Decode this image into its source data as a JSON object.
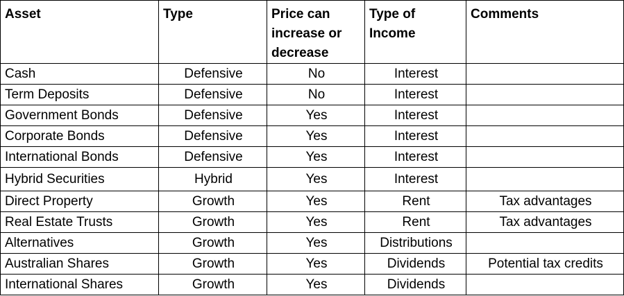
{
  "headers": {
    "asset": "Asset",
    "type": "Type",
    "price": "Price can increase or decrease",
    "income": "Type of Income",
    "comments": "Comments"
  },
  "rows": [
    {
      "asset": "Cash",
      "type": "Defensive",
      "price": "No",
      "income": "Interest",
      "comments": ""
    },
    {
      "asset": "Term Deposits",
      "type": "Defensive",
      "price": "No",
      "income": "Interest",
      "comments": ""
    },
    {
      "asset": "Government Bonds",
      "type": "Defensive",
      "price": "Yes",
      "income": "Interest",
      "comments": ""
    },
    {
      "asset": "Corporate Bonds",
      "type": "Defensive",
      "price": "Yes",
      "income": "Interest",
      "comments": ""
    },
    {
      "asset": "International Bonds",
      "type": "Defensive",
      "price": "Yes",
      "income": "Interest",
      "comments": ""
    },
    {
      "asset": "Hybrid Securities",
      "type": "Hybrid",
      "price": "Yes",
      "income": "Interest",
      "comments": ""
    },
    {
      "asset": "Direct Property",
      "type": "Growth",
      "price": "Yes",
      "income": "Rent",
      "comments": "Tax advantages"
    },
    {
      "asset": "Real Estate Trusts",
      "type": "Growth",
      "price": "Yes",
      "income": "Rent",
      "comments": "Tax advantages"
    },
    {
      "asset": "Alternatives",
      "type": "Growth",
      "price": "Yes",
      "income": "Distributions",
      "comments": ""
    },
    {
      "asset": "Australian Shares",
      "type": "Growth",
      "price": "Yes",
      "income": "Dividends",
      "comments": "Potential tax credits"
    },
    {
      "asset": "International Shares",
      "type": "Growth",
      "price": "Yes",
      "income": "Dividends",
      "comments": ""
    }
  ]
}
